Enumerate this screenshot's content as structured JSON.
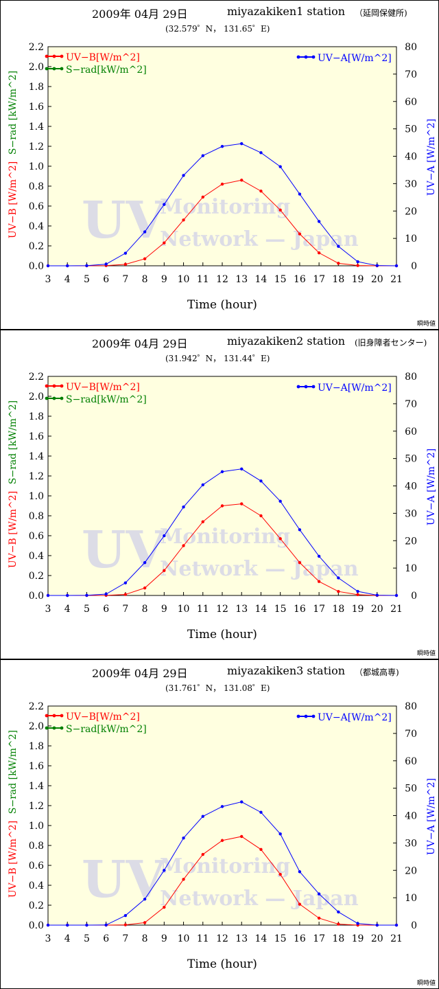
{
  "page": {
    "footer_note": "瞬時値"
  },
  "chart_data": [
    {
      "type": "line",
      "date": "2009年 04月 29日",
      "station": "miyazakiken1 station",
      "site": "（延岡保健所)",
      "coords": "(32.579゜N， 131.65゜E)",
      "xlabel": "Time (hour)",
      "ylabel_left_red": "UV−B [W/m^2]",
      "ylabel_left_green": "S−rad [kW/m^2]",
      "ylabel_right": "UV−A [W/m^2]",
      "legend": {
        "uvb": "UV−B[W/m^2]",
        "srad": "S−rad[kW/m^2]",
        "uva": "UV−A[W/m^2]"
      },
      "watermark": {
        "big": "UV",
        "line1": "Monitoring",
        "line2": "Network — Japan"
      },
      "x": [
        3,
        4,
        5,
        6,
        7,
        8,
        9,
        10,
        11,
        12,
        13,
        14,
        15,
        16,
        17,
        18,
        19,
        20,
        21
      ],
      "xlim": [
        3,
        21
      ],
      "ylim_left": [
        0,
        2.2
      ],
      "ylim_right": [
        0,
        80
      ],
      "yticks_left": [
        "0.0",
        "0.2",
        "0.4",
        "0.6",
        "0.8",
        "1.0",
        "1.2",
        "1.4",
        "1.6",
        "1.8",
        "2.0",
        "2.2"
      ],
      "yticks_right": [
        "0",
        "10",
        "20",
        "30",
        "40",
        "50",
        "60",
        "70",
        "80"
      ],
      "series": [
        {
          "name": "UV−B[W/m^2]",
          "axis": "left",
          "color": "#ff0000",
          "values": [
            0,
            0,
            0,
            0.002,
            0.015,
            0.07,
            0.23,
            0.46,
            0.69,
            0.82,
            0.86,
            0.75,
            0.56,
            0.32,
            0.13,
            0.025,
            0.003,
            0,
            0
          ]
        },
        {
          "name": "UV−A[W/m^2]",
          "axis": "right",
          "color": "#0000ff",
          "values": [
            0,
            0,
            0.05,
            0.6,
            4.6,
            12.4,
            22.4,
            33.0,
            40.2,
            43.6,
            44.6,
            41.3,
            36.2,
            26.2,
            16.2,
            7.1,
            1.5,
            0.08,
            0
          ]
        }
      ]
    },
    {
      "type": "line",
      "date": "2009年 04月 29日",
      "station": "miyazakiken2 station",
      "site": "(旧身障者センター)",
      "coords": "(31.942゜N， 131.44゜E)",
      "xlabel": "Time (hour)",
      "ylabel_left_red": "UV−B [W/m^2]",
      "ylabel_left_green": "S−rad [kW/m^2]",
      "ylabel_right": "UV−A [W/m^2]",
      "legend": {
        "uvb": "UV−B[W/m^2]",
        "srad": "S−rad[kW/m^2]",
        "uva": "UV−A[W/m^2]"
      },
      "watermark": {
        "big": "UV",
        "line1": "Monitoring",
        "line2": "Network — Japan"
      },
      "x": [
        3,
        4,
        5,
        6,
        7,
        8,
        9,
        10,
        11,
        12,
        13,
        14,
        15,
        16,
        17,
        18,
        19,
        20,
        21
      ],
      "xlim": [
        3,
        21
      ],
      "ylim_left": [
        0,
        2.2
      ],
      "ylim_right": [
        0,
        80
      ],
      "yticks_left": [
        "0.0",
        "0.2",
        "0.4",
        "0.6",
        "0.8",
        "1.0",
        "1.2",
        "1.4",
        "1.6",
        "1.8",
        "2.0",
        "2.2"
      ],
      "yticks_right": [
        "0",
        "10",
        "20",
        "30",
        "40",
        "50",
        "60",
        "70",
        "80"
      ],
      "series": [
        {
          "name": "UV−B[W/m^2]",
          "axis": "left",
          "color": "#ff0000",
          "values": [
            0,
            0,
            0,
            0.001,
            0.01,
            0.075,
            0.25,
            0.5,
            0.74,
            0.9,
            0.92,
            0.8,
            0.57,
            0.33,
            0.14,
            0.04,
            0.008,
            0,
            0
          ]
        },
        {
          "name": "UV−A[W/m^2]",
          "axis": "right",
          "color": "#0000ff",
          "values": [
            0,
            0,
            0.05,
            0.5,
            4.6,
            12.0,
            21.8,
            32.3,
            40.4,
            45.2,
            46.2,
            41.8,
            34.4,
            24.0,
            14.3,
            6.4,
            1.5,
            0.1,
            0
          ]
        }
      ]
    },
    {
      "type": "line",
      "date": "2009年 04月 29日",
      "station": "miyazakiken3 station",
      "site": "（都城高専)",
      "coords": "(31.761゜N， 131.08゜E)",
      "xlabel": "Time (hour)",
      "ylabel_left_red": "UV−B [W/m^2]",
      "ylabel_left_green": "S−rad [kW/m^2]",
      "ylabel_right": "UV−A [W/m^2]",
      "legend": {
        "uvb": "UV−B[W/m^2]",
        "srad": "S−rad[kW/m^2]",
        "uva": "UV−A[W/m^2]"
      },
      "watermark": {
        "big": "UV",
        "line1": "Monitoring",
        "line2": "Network — Japan"
      },
      "x": [
        3,
        4,
        5,
        6,
        7,
        8,
        9,
        10,
        11,
        12,
        13,
        14,
        15,
        16,
        17,
        18,
        19,
        20,
        21
      ],
      "xlim": [
        3,
        21
      ],
      "ylim_left": [
        0,
        2.2
      ],
      "ylim_right": [
        0,
        80
      ],
      "yticks_left": [
        "0.0",
        "0.2",
        "0.4",
        "0.6",
        "0.8",
        "1.0",
        "1.2",
        "1.4",
        "1.6",
        "1.8",
        "2.0",
        "2.2"
      ],
      "yticks_right": [
        "0",
        "10",
        "20",
        "30",
        "40",
        "50",
        "60",
        "70",
        "80"
      ],
      "series": [
        {
          "name": "UV−B[W/m^2]",
          "axis": "left",
          "color": "#ff0000",
          "values": [
            0,
            0,
            0,
            0,
            0.003,
            0.025,
            0.18,
            0.46,
            0.71,
            0.85,
            0.89,
            0.76,
            0.51,
            0.21,
            0.07,
            0.01,
            0,
            0,
            0
          ]
        },
        {
          "name": "UV−A[W/m^2]",
          "axis": "right",
          "color": "#0000ff",
          "values": [
            0,
            0,
            0,
            0.05,
            3.5,
            9.5,
            20.0,
            31.8,
            39.7,
            43.3,
            45.0,
            41.2,
            33.3,
            19.5,
            11.4,
            4.8,
            0.6,
            0,
            0
          ]
        }
      ]
    }
  ]
}
